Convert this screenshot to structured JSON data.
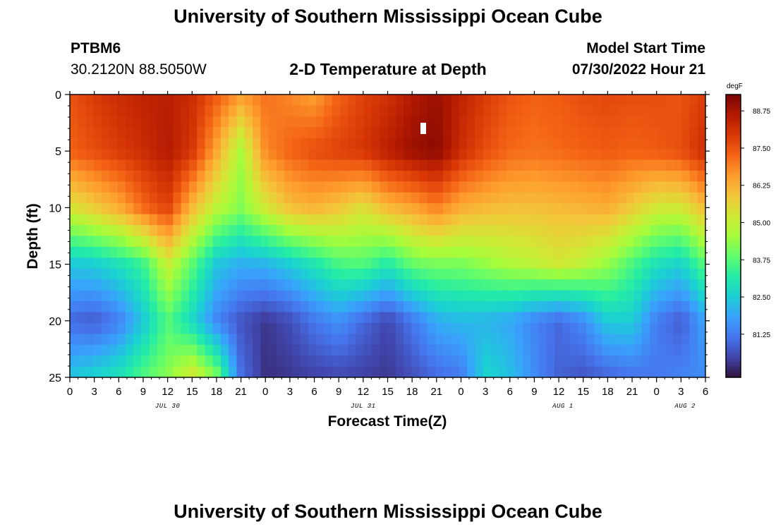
{
  "page": {
    "title": "University of Southern Mississippi Ocean Cube",
    "footer_title": "University of Southern Mississippi Ocean Cube",
    "station_id": "PTBM6",
    "coords": "30.2120N  88.5050W",
    "plot_title": "2-D Temperature at Depth",
    "model_label": "Model Start Time",
    "model_time": "07/30/2022 Hour 21"
  },
  "chart_data": {
    "type": "heatmap",
    "title": "2-D Temperature at Depth",
    "xlabel": "Forecast Time(Z)",
    "ylabel": "Depth (ft)",
    "x_unit": "hours since JUL 30 00Z",
    "xlim": [
      0,
      78
    ],
    "ylim": [
      25,
      0
    ],
    "x_ticks": [
      0,
      3,
      6,
      9,
      12,
      15,
      18,
      21,
      24,
      27,
      30,
      33,
      36,
      39,
      42,
      45,
      48,
      51,
      54,
      57,
      60,
      63,
      66,
      69,
      72,
      75,
      78
    ],
    "x_tick_labels": [
      "0",
      "3",
      "6",
      "9",
      "12",
      "15",
      "18",
      "21",
      "0",
      "3",
      "6",
      "9",
      "12",
      "15",
      "18",
      "21",
      "0",
      "3",
      "6",
      "9",
      "12",
      "15",
      "18",
      "21",
      "0",
      "3",
      "6"
    ],
    "y_ticks": [
      0,
      5,
      10,
      15,
      20,
      25
    ],
    "y_tick_labels": [
      "0",
      "5",
      "10",
      "15",
      "20",
      "25"
    ],
    "date_labels": [
      {
        "x": 12,
        "text": "JUL 30"
      },
      {
        "x": 36,
        "text": "JUL 31"
      },
      {
        "x": 60.5,
        "text": "AUG 1"
      },
      {
        "x": 75.5,
        "text": "AUG 2"
      }
    ],
    "colorbar": {
      "unit": "degF",
      "min": 79.8,
      "max": 89.3,
      "ticks": [
        81.25,
        82.5,
        83.75,
        85.0,
        86.25,
        87.5,
        88.75
      ],
      "tick_labels": [
        "81.25",
        "82.50",
        "83.75",
        "85.00",
        "86.25",
        "87.50",
        "88.75"
      ],
      "colors": [
        "#30123b",
        "#4145ab",
        "#4675ed",
        "#39a2fc",
        "#1bcfd4",
        "#24eca6",
        "#61fc6c",
        "#a4fc3b",
        "#d1e834",
        "#f3c63a",
        "#fe9b2d",
        "#f36315",
        "#d93806",
        "#b11901",
        "#7a0402"
      ]
    },
    "depths_ft": [
      0,
      5,
      10,
      15,
      20,
      25
    ],
    "times_h": [
      0,
      3,
      6,
      9,
      12,
      15,
      18,
      21,
      24,
      27,
      30,
      33,
      36,
      39,
      42,
      45,
      48,
      51,
      54,
      57,
      60,
      63,
      66,
      69,
      72,
      75,
      78
    ],
    "temperature_degF": [
      [
        87.5,
        87.9,
        88.2,
        88.4,
        88.5,
        88.2,
        87.4,
        86.6,
        87.1,
        86.8,
        86.5,
        87.3,
        87.8,
        88.1,
        88.6,
        88.9,
        88.4,
        87.9,
        87.5,
        87.3,
        87.4,
        87.6,
        87.7,
        87.6,
        87.6,
        87.5,
        87.9
      ],
      [
        87.3,
        87.6,
        87.9,
        88.2,
        88.6,
        88.0,
        86.4,
        84.6,
        86.8,
        87.3,
        87.6,
        87.8,
        88.0,
        88.5,
        88.9,
        89.1,
        88.2,
        87.6,
        87.2,
        87.1,
        87.2,
        87.3,
        87.4,
        87.3,
        87.4,
        87.6,
        88.2
      ],
      [
        85.3,
        85.8,
        86.3,
        87.2,
        87.8,
        86.1,
        84.9,
        84.2,
        85.2,
        86.0,
        86.2,
        85.9,
        85.4,
        86.1,
        86.4,
        86.9,
        86.3,
        86.1,
        86.0,
        86.0,
        86.1,
        86.2,
        86.3,
        85.8,
        85.2,
        85.2,
        86.1
      ],
      [
        82.4,
        82.5,
        82.9,
        83.4,
        85.1,
        83.8,
        82.4,
        82.0,
        82.1,
        82.5,
        83.0,
        83.6,
        83.7,
        83.1,
        83.9,
        84.1,
        84.1,
        84.4,
        84.7,
        84.9,
        85.2,
        84.9,
        84.4,
        83.6,
        82.9,
        82.6,
        83.8
      ],
      [
        81.0,
        80.8,
        81.3,
        82.4,
        83.7,
        82.7,
        81.4,
        80.7,
        80.3,
        80.6,
        81.2,
        81.6,
        81.0,
        80.5,
        81.2,
        82.0,
        82.2,
        82.1,
        81.9,
        81.4,
        81.0,
        81.5,
        82.5,
        82.5,
        81.3,
        80.8,
        81.9
      ],
      [
        82.4,
        82.7,
        83.0,
        83.7,
        84.3,
        85.4,
        84.2,
        81.1,
        80.2,
        80.3,
        80.4,
        80.5,
        80.4,
        80.3,
        80.6,
        81.0,
        81.2,
        82.7,
        82.3,
        81.5,
        80.9,
        80.7,
        80.9,
        81.1,
        81.2,
        81.4,
        81.5
      ]
    ]
  }
}
